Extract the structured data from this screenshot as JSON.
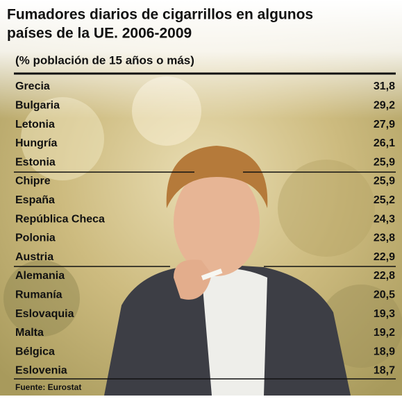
{
  "chart_data": {
    "type": "table",
    "title": "Fumadores diarios de cigarrillos en algunos países de la UE. 2006-2009",
    "subtitle": "(% población de 15 años o más)",
    "categories": [
      "Grecia",
      "Bulgaria",
      "Letonia",
      "Hungría",
      "Estonia",
      "Chipre",
      "España",
      "República Checa",
      "Polonia",
      "Austria",
      "Alemania",
      "Rumanía",
      "Eslovaquia",
      "Malta",
      "Bélgica",
      "Eslovenia"
    ],
    "values": [
      31.8,
      29.2,
      27.9,
      26.1,
      25.9,
      25.9,
      25.2,
      24.3,
      23.8,
      22.9,
      22.8,
      20.5,
      19.3,
      19.2,
      18.9,
      18.7
    ],
    "value_labels": [
      "31,8",
      "29,2",
      "27,9",
      "26,1",
      "25,9",
      "25,9",
      "25,2",
      "24,3",
      "23,8",
      "22,9",
      "22,8",
      "20,5",
      "19,3",
      "19,2",
      "18,9",
      "18,7"
    ],
    "source": "Fuente: Eurostat"
  }
}
